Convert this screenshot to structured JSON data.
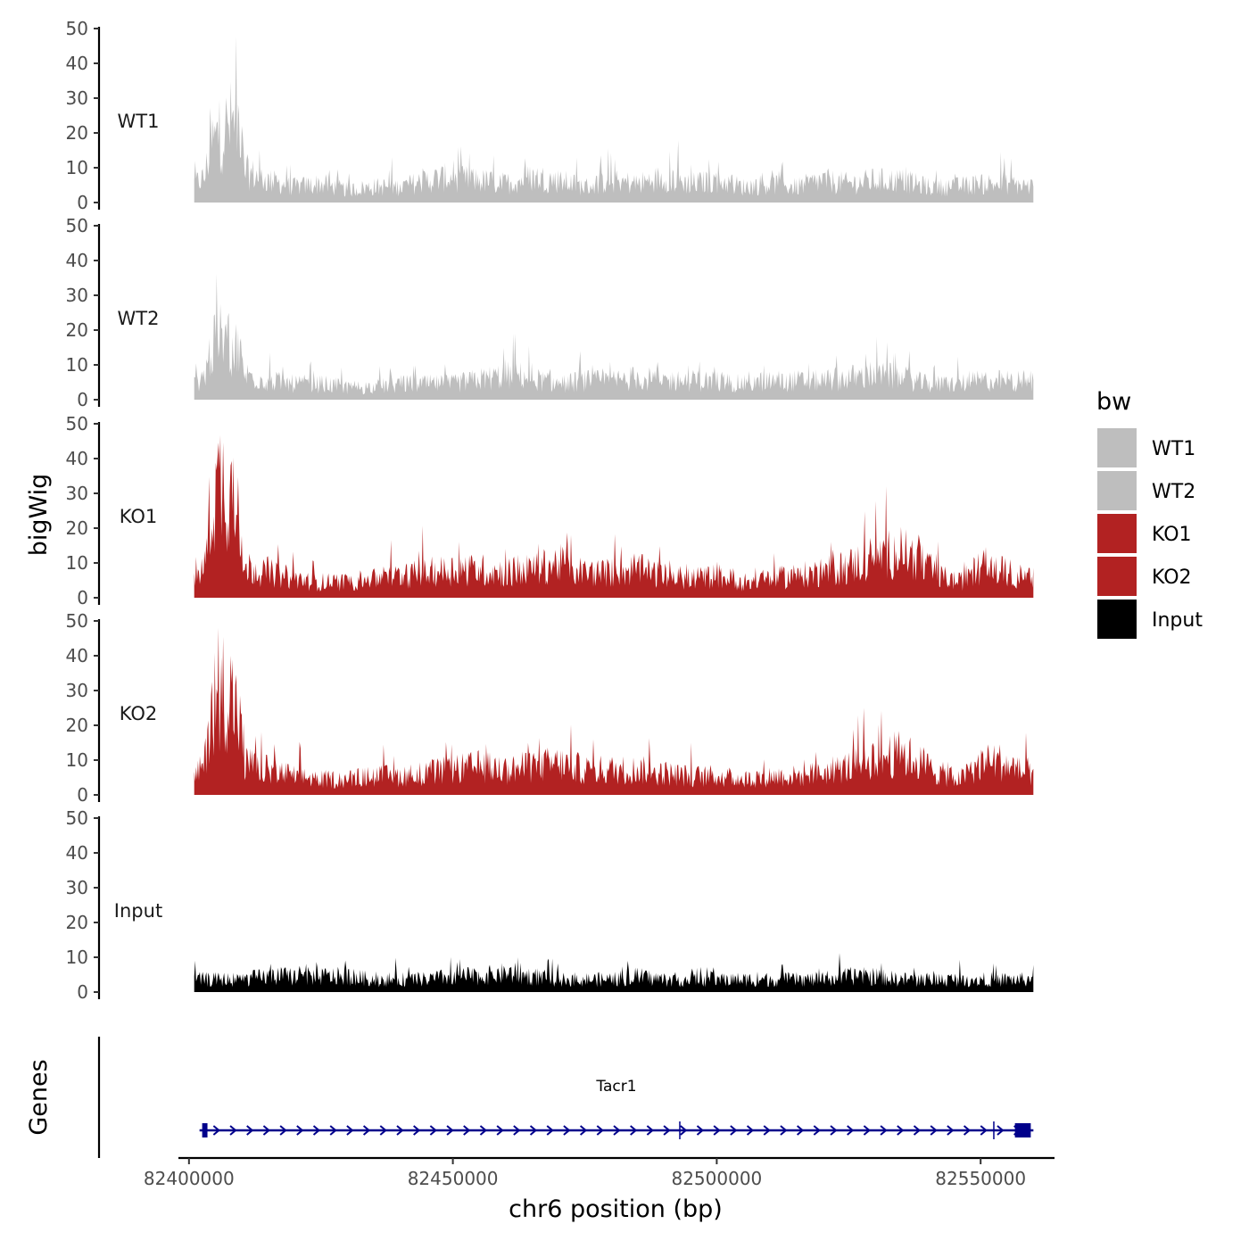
{
  "chart_data": {
    "type": "area",
    "ylabel": "bigWig",
    "xlabel": "chr6 position (bp)",
    "xlim": [
      82398000,
      82564000
    ],
    "data_range": [
      82401000,
      82560000
    ],
    "x_ticks": [
      {
        "value": 82400000,
        "label": "82400000"
      },
      {
        "value": 82450000,
        "label": "82450000"
      },
      {
        "value": 82500000,
        "label": "82500000"
      },
      {
        "value": 82550000,
        "label": "82550000"
      }
    ],
    "ylim": [
      0,
      50
    ],
    "y_ticks": [
      {
        "value": 0,
        "label": "0"
      },
      {
        "value": 10,
        "label": "10"
      },
      {
        "value": 20,
        "label": "20"
      },
      {
        "value": 30,
        "label": "30"
      },
      {
        "value": 40,
        "label": "40"
      },
      {
        "value": 50,
        "label": "50"
      }
    ],
    "series": [
      {
        "name": "WT1",
        "color": "#BEBEBE",
        "profile": [
          [
            82401000,
            6
          ],
          [
            82403000,
            8
          ],
          [
            82404000,
            18
          ],
          [
            82406000,
            22
          ],
          [
            82408000,
            25
          ],
          [
            82409500,
            26
          ],
          [
            82410500,
            10
          ],
          [
            82415000,
            7
          ],
          [
            82420000,
            5
          ],
          [
            82425000,
            6
          ],
          [
            82430000,
            4
          ],
          [
            82435000,
            5
          ],
          [
            82440000,
            5
          ],
          [
            82445000,
            7
          ],
          [
            82449000,
            8
          ],
          [
            82455000,
            7
          ],
          [
            82460000,
            6
          ],
          [
            82465000,
            8
          ],
          [
            82470000,
            7
          ],
          [
            82475000,
            5
          ],
          [
            82480000,
            7
          ],
          [
            82485000,
            6
          ],
          [
            82490000,
            8
          ],
          [
            82495000,
            6
          ],
          [
            82500000,
            7
          ],
          [
            82505000,
            5
          ],
          [
            82510000,
            6
          ],
          [
            82515000,
            5
          ],
          [
            82520000,
            7
          ],
          [
            82525000,
            6
          ],
          [
            82530000,
            7
          ],
          [
            82535000,
            7
          ],
          [
            82540000,
            5
          ],
          [
            82545000,
            5
          ],
          [
            82550000,
            6
          ],
          [
            82555000,
            6
          ],
          [
            82560000,
            5
          ]
        ]
      },
      {
        "name": "WT2",
        "color": "#BEBEBE",
        "profile": [
          [
            82401000,
            5
          ],
          [
            82403000,
            8
          ],
          [
            82404000,
            15
          ],
          [
            82406000,
            20
          ],
          [
            82408000,
            17
          ],
          [
            82409500,
            16
          ],
          [
            82410500,
            8
          ],
          [
            82415000,
            6
          ],
          [
            82420000,
            5
          ],
          [
            82425000,
            5
          ],
          [
            82430000,
            4
          ],
          [
            82435000,
            4
          ],
          [
            82440000,
            5
          ],
          [
            82445000,
            5
          ],
          [
            82450000,
            5
          ],
          [
            82457000,
            7
          ],
          [
            82462000,
            8
          ],
          [
            82467000,
            6
          ],
          [
            82470000,
            5
          ],
          [
            82475000,
            6
          ],
          [
            82480000,
            6
          ],
          [
            82485000,
            7
          ],
          [
            82490000,
            6
          ],
          [
            82495000,
            6
          ],
          [
            82500000,
            6
          ],
          [
            82505000,
            5
          ],
          [
            82510000,
            6
          ],
          [
            82515000,
            6
          ],
          [
            82520000,
            6
          ],
          [
            82525000,
            7
          ],
          [
            82530000,
            8
          ],
          [
            82535000,
            7
          ],
          [
            82540000,
            5
          ],
          [
            82545000,
            5
          ],
          [
            82550000,
            6
          ],
          [
            82555000,
            6
          ],
          [
            82560000,
            6
          ]
        ]
      },
      {
        "name": "KO1",
        "color": "#B22222",
        "profile": [
          [
            82401000,
            6
          ],
          [
            82403000,
            10
          ],
          [
            82404000,
            28
          ],
          [
            82406000,
            38
          ],
          [
            82408000,
            34
          ],
          [
            82409500,
            28
          ],
          [
            82410500,
            10
          ],
          [
            82415000,
            8
          ],
          [
            82420000,
            6
          ],
          [
            82425000,
            5
          ],
          [
            82430000,
            5
          ],
          [
            82435000,
            6
          ],
          [
            82440000,
            7
          ],
          [
            82445000,
            8
          ],
          [
            82450000,
            9
          ],
          [
            82455000,
            9
          ],
          [
            82460000,
            8
          ],
          [
            82465000,
            9
          ],
          [
            82470000,
            11
          ],
          [
            82475000,
            8
          ],
          [
            82480000,
            8
          ],
          [
            82485000,
            9
          ],
          [
            82490000,
            7
          ],
          [
            82495000,
            6
          ],
          [
            82500000,
            7
          ],
          [
            82505000,
            5
          ],
          [
            82510000,
            6
          ],
          [
            82515000,
            7
          ],
          [
            82520000,
            8
          ],
          [
            82525000,
            10
          ],
          [
            82530000,
            13
          ],
          [
            82535000,
            15
          ],
          [
            82538000,
            12
          ],
          [
            82542000,
            7
          ],
          [
            82546000,
            5
          ],
          [
            82550000,
            10
          ],
          [
            82553000,
            9
          ],
          [
            82557000,
            7
          ],
          [
            82560000,
            6
          ]
        ]
      },
      {
        "name": "KO2",
        "color": "#B22222",
        "profile": [
          [
            82401000,
            6
          ],
          [
            82403000,
            10
          ],
          [
            82404000,
            28
          ],
          [
            82406000,
            35
          ],
          [
            82408000,
            32
          ],
          [
            82409500,
            25
          ],
          [
            82410500,
            10
          ],
          [
            82415000,
            8
          ],
          [
            82420000,
            6
          ],
          [
            82425000,
            5
          ],
          [
            82430000,
            5
          ],
          [
            82435000,
            6
          ],
          [
            82440000,
            6
          ],
          [
            82445000,
            7
          ],
          [
            82450000,
            8
          ],
          [
            82455000,
            9
          ],
          [
            82460000,
            8
          ],
          [
            82465000,
            9
          ],
          [
            82470000,
            10
          ],
          [
            82475000,
            8
          ],
          [
            82480000,
            8
          ],
          [
            82485000,
            8
          ],
          [
            82490000,
            7
          ],
          [
            82495000,
            6
          ],
          [
            82500000,
            6
          ],
          [
            82505000,
            5
          ],
          [
            82510000,
            6
          ],
          [
            82515000,
            6
          ],
          [
            82520000,
            7
          ],
          [
            82525000,
            9
          ],
          [
            82530000,
            12
          ],
          [
            82535000,
            13
          ],
          [
            82538000,
            11
          ],
          [
            82542000,
            7
          ],
          [
            82546000,
            5
          ],
          [
            82550000,
            10
          ],
          [
            82553000,
            11
          ],
          [
            82557000,
            8
          ],
          [
            82560000,
            6
          ]
        ]
      },
      {
        "name": "Input",
        "color": "#000000",
        "profile": [
          [
            82401000,
            4
          ],
          [
            82410000,
            4
          ],
          [
            82415000,
            5
          ],
          [
            82420000,
            5
          ],
          [
            82425000,
            5
          ],
          [
            82430000,
            5
          ],
          [
            82435000,
            4
          ],
          [
            82440000,
            4
          ],
          [
            82445000,
            4
          ],
          [
            82450000,
            5
          ],
          [
            82455000,
            5
          ],
          [
            82460000,
            6
          ],
          [
            82465000,
            5
          ],
          [
            82470000,
            4
          ],
          [
            82475000,
            4
          ],
          [
            82480000,
            4
          ],
          [
            82485000,
            5
          ],
          [
            82490000,
            4
          ],
          [
            82495000,
            4
          ],
          [
            82500000,
            4
          ],
          [
            82505000,
            4
          ],
          [
            82510000,
            4
          ],
          [
            82515000,
            4
          ],
          [
            82520000,
            4
          ],
          [
            82525000,
            5
          ],
          [
            82530000,
            5
          ],
          [
            82535000,
            4
          ],
          [
            82540000,
            4
          ],
          [
            82545000,
            4
          ],
          [
            82550000,
            4
          ],
          [
            82555000,
            4
          ],
          [
            82560000,
            4
          ]
        ]
      }
    ],
    "genes_track": {
      "label": "Genes",
      "gene_name": "Tacr1",
      "gene_color": "#00008B",
      "start": 82402000,
      "end": 82560000,
      "exons": [
        {
          "start": 82402500,
          "end": 82403500
        },
        {
          "start": 82556500,
          "end": 82559500
        }
      ],
      "introns_marks": [
        82493000,
        82552500
      ]
    },
    "legend": {
      "title": "bw",
      "position": "right",
      "entries": [
        {
          "label": "WT1",
          "color": "#BEBEBE"
        },
        {
          "label": "WT2",
          "color": "#BEBEBE"
        },
        {
          "label": "KO1",
          "color": "#B22222"
        },
        {
          "label": "KO2",
          "color": "#B22222"
        },
        {
          "label": "Input",
          "color": "#000000"
        }
      ]
    }
  }
}
